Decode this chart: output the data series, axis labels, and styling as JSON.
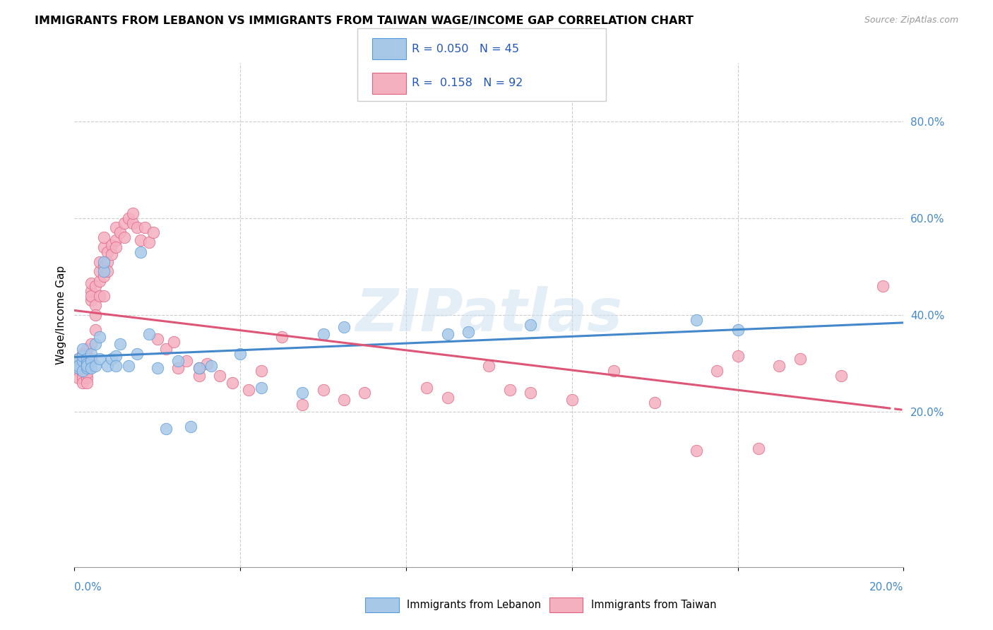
{
  "title": "IMMIGRANTS FROM LEBANON VS IMMIGRANTS FROM TAIWAN WAGE/INCOME GAP CORRELATION CHART",
  "source": "Source: ZipAtlas.com",
  "ylabel": "Wage/Income Gap",
  "legend_r1": "R = 0.050",
  "legend_n1": "N = 45",
  "legend_r2": "R =  0.158",
  "legend_n2": "N = 92",
  "lebanon_color": "#a8c8e8",
  "taiwan_color": "#f5b0c0",
  "lebanon_edge_color": "#5599dd",
  "taiwan_edge_color": "#e06080",
  "lebanon_line_color": "#4488cc",
  "taiwan_line_color": "#dd5577",
  "background_color": "#ffffff",
  "watermark": "ZIPatlas",
  "ylim_low": -0.12,
  "ylim_high": 0.92,
  "xlim_low": 0.0,
  "xlim_high": 0.2,
  "lebanon_x": [
    0.001,
    0.001,
    0.001,
    0.002,
    0.002,
    0.002,
    0.002,
    0.003,
    0.003,
    0.003,
    0.003,
    0.004,
    0.004,
    0.004,
    0.005,
    0.005,
    0.006,
    0.006,
    0.007,
    0.007,
    0.008,
    0.009,
    0.01,
    0.01,
    0.011,
    0.013,
    0.015,
    0.016,
    0.018,
    0.02,
    0.022,
    0.025,
    0.028,
    0.03,
    0.033,
    0.04,
    0.045,
    0.055,
    0.06,
    0.065,
    0.09,
    0.095,
    0.11,
    0.15,
    0.16
  ],
  "lebanon_y": [
    0.29,
    0.31,
    0.295,
    0.305,
    0.285,
    0.315,
    0.33,
    0.29,
    0.31,
    0.3,
    0.295,
    0.32,
    0.305,
    0.29,
    0.34,
    0.295,
    0.355,
    0.31,
    0.49,
    0.51,
    0.295,
    0.31,
    0.315,
    0.295,
    0.34,
    0.295,
    0.32,
    0.53,
    0.36,
    0.29,
    0.165,
    0.305,
    0.17,
    0.29,
    0.295,
    0.32,
    0.25,
    0.24,
    0.36,
    0.375,
    0.36,
    0.365,
    0.38,
    0.39,
    0.37
  ],
  "taiwan_x": [
    0.001,
    0.001,
    0.001,
    0.001,
    0.001,
    0.002,
    0.002,
    0.002,
    0.002,
    0.002,
    0.002,
    0.002,
    0.003,
    0.003,
    0.003,
    0.003,
    0.003,
    0.003,
    0.003,
    0.003,
    0.003,
    0.004,
    0.004,
    0.004,
    0.004,
    0.004,
    0.004,
    0.005,
    0.005,
    0.005,
    0.005,
    0.006,
    0.006,
    0.006,
    0.006,
    0.007,
    0.007,
    0.007,
    0.007,
    0.007,
    0.008,
    0.008,
    0.008,
    0.009,
    0.009,
    0.01,
    0.01,
    0.01,
    0.011,
    0.012,
    0.012,
    0.013,
    0.014,
    0.014,
    0.015,
    0.016,
    0.017,
    0.018,
    0.019,
    0.02,
    0.022,
    0.024,
    0.025,
    0.027,
    0.03,
    0.03,
    0.032,
    0.035,
    0.038,
    0.042,
    0.045,
    0.05,
    0.055,
    0.06,
    0.065,
    0.07,
    0.085,
    0.09,
    0.1,
    0.105,
    0.11,
    0.12,
    0.13,
    0.14,
    0.15,
    0.155,
    0.16,
    0.165,
    0.17,
    0.175,
    0.185,
    0.195
  ],
  "taiwan_y": [
    0.295,
    0.3,
    0.285,
    0.31,
    0.27,
    0.295,
    0.315,
    0.28,
    0.27,
    0.3,
    0.32,
    0.26,
    0.29,
    0.31,
    0.295,
    0.27,
    0.33,
    0.315,
    0.295,
    0.28,
    0.26,
    0.34,
    0.31,
    0.43,
    0.45,
    0.465,
    0.44,
    0.42,
    0.46,
    0.4,
    0.37,
    0.47,
    0.44,
    0.49,
    0.51,
    0.5,
    0.48,
    0.44,
    0.54,
    0.56,
    0.51,
    0.53,
    0.49,
    0.545,
    0.525,
    0.555,
    0.54,
    0.58,
    0.57,
    0.59,
    0.56,
    0.6,
    0.59,
    0.61,
    0.58,
    0.555,
    0.58,
    0.55,
    0.57,
    0.35,
    0.33,
    0.345,
    0.29,
    0.305,
    0.275,
    0.29,
    0.3,
    0.275,
    0.26,
    0.245,
    0.285,
    0.355,
    0.215,
    0.245,
    0.225,
    0.24,
    0.25,
    0.23,
    0.295,
    0.245,
    0.24,
    0.225,
    0.285,
    0.22,
    0.12,
    0.285,
    0.315,
    0.125,
    0.295,
    0.31,
    0.275,
    0.46
  ]
}
